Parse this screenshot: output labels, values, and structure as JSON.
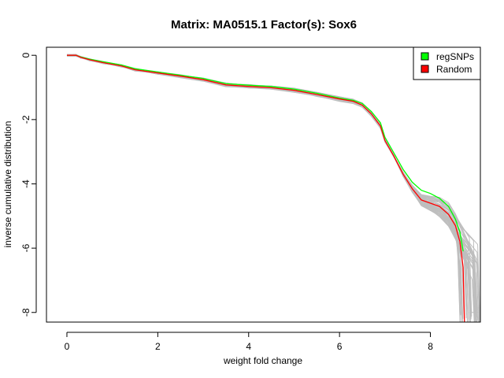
{
  "chart_data": {
    "type": "line",
    "title": "Matrix: MA0515.1 Factor(s): Sox6",
    "xlabel": "weight fold change",
    "ylabel": "inverse cumulative distribution",
    "xlim": [
      -0.45,
      9.1
    ],
    "ylim": [
      -8.3,
      0.25
    ],
    "xticks": [
      0,
      2,
      4,
      6,
      8
    ],
    "yticks": [
      0,
      -2,
      -4,
      -6,
      -8
    ],
    "legend_position": "top-right",
    "colors": {
      "regSNPs": "#00ff00",
      "Random": "#ff0000",
      "background": "#bebebe"
    },
    "legend": [
      {
        "name": "regSNPs",
        "color": "#00ff00"
      },
      {
        "name": "Random",
        "color": "#ff0000"
      }
    ],
    "series": [
      {
        "name": "regSNPs",
        "color": "#00ff00",
        "x": [
          0,
          0.2,
          0.3,
          0.5,
          0.8,
          1.2,
          1.5,
          2.0,
          2.5,
          3.0,
          3.5,
          4.0,
          4.5,
          5.0,
          5.5,
          6.0,
          6.3,
          6.5,
          6.7,
          6.9,
          7.0,
          7.2,
          7.4,
          7.6,
          7.8,
          8.0,
          8.2,
          8.4,
          8.55,
          8.65,
          8.72
        ],
        "y": [
          0,
          0,
          -0.05,
          -0.12,
          -0.2,
          -0.3,
          -0.42,
          -0.52,
          -0.62,
          -0.72,
          -0.88,
          -0.93,
          -0.97,
          -1.05,
          -1.18,
          -1.33,
          -1.4,
          -1.5,
          -1.75,
          -2.1,
          -2.55,
          -3.05,
          -3.55,
          -3.95,
          -4.2,
          -4.3,
          -4.45,
          -4.7,
          -5.1,
          -5.5,
          -6.1
        ]
      },
      {
        "name": "Random",
        "color": "#ff0000",
        "x": [
          0,
          0.2,
          0.3,
          0.5,
          0.8,
          1.2,
          1.5,
          2.0,
          2.5,
          3.0,
          3.5,
          4.0,
          4.5,
          5.0,
          5.5,
          6.0,
          6.3,
          6.5,
          6.7,
          6.9,
          7.0,
          7.2,
          7.4,
          7.6,
          7.8,
          8.0,
          8.2,
          8.4,
          8.55,
          8.65,
          8.72,
          8.75
        ],
        "y": [
          0,
          0,
          -0.06,
          -0.14,
          -0.23,
          -0.33,
          -0.45,
          -0.55,
          -0.65,
          -0.76,
          -0.92,
          -0.97,
          -1.01,
          -1.09,
          -1.22,
          -1.36,
          -1.43,
          -1.55,
          -1.82,
          -2.2,
          -2.65,
          -3.15,
          -3.7,
          -4.15,
          -4.5,
          -4.6,
          -4.7,
          -4.95,
          -5.3,
          -5.8,
          -6.6,
          -8.3
        ]
      }
    ]
  }
}
